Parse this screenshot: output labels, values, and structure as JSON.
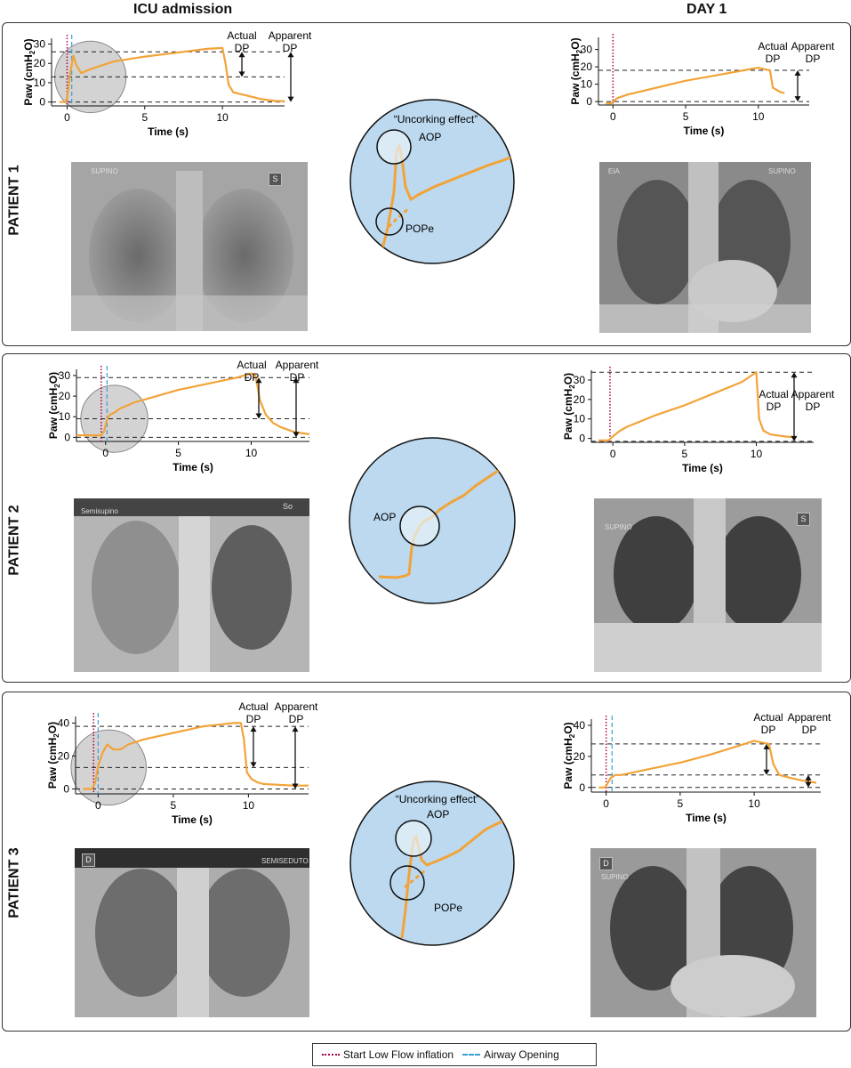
{
  "headers": {
    "left": "ICU admission",
    "right": "DAY 1"
  },
  "legend": {
    "start": {
      "label": "Start Low Flow inflation",
      "color": "#a8004d"
    },
    "airway": {
      "label": "Airway  Opening",
      "color": "#3a9fd5"
    }
  },
  "colors": {
    "trace": "#f2a338",
    "inset_bg": "#bcd9ef",
    "uncork_fill": "#e8f2fa",
    "gray_circle": "#d3d3d3"
  },
  "axis": {
    "ylabel_main": "Paw (cmH",
    "ylabel_sub": "2",
    "ylabel_end": "O)",
    "xlabel": "Time (s)"
  },
  "labels": {
    "actual": [
      "Actual",
      "DP"
    ],
    "apparent": [
      "Apparent",
      "DP"
    ],
    "uncorking": "“Uncorking effect”",
    "aop": "AOP",
    "pope": "POPe"
  },
  "patients": [
    {
      "label": "PATIENT 1",
      "xray_left": {
        "tag": "SUPINO",
        "box": "S"
      },
      "xray_right": {
        "tag": "EIA",
        "tag2": "SUPINO",
        "box": ""
      }
    },
    {
      "label": "PATIENT 2",
      "xray_left": {
        "tag": "Semisupino",
        "box": "So"
      },
      "xray_right": {
        "tag": "SUPINO",
        "box": "S"
      }
    },
    {
      "label": "PATIENT 3",
      "xray_left": {
        "tag": "SEMISEDUTO",
        "box": "D"
      },
      "xray_right": {
        "tag": "SUPINO",
        "box": "D"
      }
    }
  ],
  "chart_data": [
    {
      "id": "p1-icu",
      "type": "line",
      "xlim": [
        -1,
        14
      ],
      "ylim": [
        -2,
        33
      ],
      "xticks": [
        0,
        5,
        10
      ],
      "yticks": [
        0,
        10,
        20,
        30
      ],
      "start_line": 0,
      "airway_line": 0.3,
      "dashed_levels": [
        26,
        13,
        0
      ],
      "actual_dp": [
        26,
        13
      ],
      "apparent_dp": [
        26,
        0
      ],
      "gray_circle": {
        "cx": 1.5,
        "cy": 13,
        "r": 2.3
      },
      "series": [
        {
          "x": [
            -0.5,
            -0.1,
            0.0,
            0.2,
            0.4,
            0.6,
            0.9,
            1.5,
            3,
            5,
            7,
            9,
            10,
            10.2,
            10.4,
            10.7,
            11.5,
            12.5,
            13.5,
            14
          ],
          "y": [
            0,
            0,
            2,
            15,
            24,
            19,
            15,
            17,
            21,
            23.5,
            25.5,
            27.5,
            28,
            20,
            9,
            5,
            3.5,
            1.5,
            0.5,
            0.5
          ]
        }
      ]
    },
    {
      "id": "p1-day1",
      "type": "line",
      "xlim": [
        -1,
        13.5
      ],
      "ylim": [
        -2,
        37
      ],
      "xticks": [
        0,
        5,
        10
      ],
      "yticks": [
        0,
        10,
        20,
        30
      ],
      "start_line": 0,
      "dashed_levels": [
        18,
        0
      ],
      "actual_dp": null,
      "apparent_dp": [
        18,
        0
      ],
      "series": [
        {
          "x": [
            -0.5,
            -0.1,
            0.0,
            0.3,
            1,
            2,
            3,
            5,
            7,
            9,
            10,
            10.5,
            10.8,
            11,
            11.5,
            11.8
          ],
          "y": [
            -1,
            -1,
            0,
            2,
            4,
            6,
            8,
            12,
            15,
            18,
            19.5,
            18.5,
            18,
            8,
            5.5,
            5
          ]
        }
      ]
    },
    {
      "id": "p2-icu",
      "type": "line",
      "xlim": [
        -2,
        14
      ],
      "ylim": [
        -2,
        33
      ],
      "xticks": [
        0,
        5,
        10
      ],
      "yticks": [
        0,
        10,
        20,
        30
      ],
      "start_line": -0.3,
      "airway_line": 0.1,
      "dashed_levels": [
        29,
        9,
        0
      ],
      "actual_dp": [
        29,
        9
      ],
      "apparent_dp": [
        29,
        0
      ],
      "gray_circle": {
        "cx": 0.6,
        "cy": 9,
        "r": 2.3
      },
      "series": [
        {
          "x": [
            -2,
            -0.6,
            -0.3,
            -0.1,
            0.0,
            0.1,
            0.3,
            0.6,
            1,
            2,
            3,
            5,
            7,
            9,
            10,
            10.3,
            10.6,
            11,
            11.5,
            12,
            13,
            14
          ],
          "y": [
            1,
            1,
            1,
            3,
            6,
            9,
            11,
            12,
            14,
            17,
            19,
            23,
            26,
            29,
            31,
            30,
            18,
            11,
            7,
            5,
            2.5,
            1.5
          ]
        }
      ]
    },
    {
      "id": "p2-day1",
      "type": "line",
      "xlim": [
        -1.5,
        14
      ],
      "ylim": [
        -2,
        35
      ],
      "xticks": [
        0,
        5,
        10
      ],
      "yticks": [
        0,
        10,
        20,
        30
      ],
      "start_line": -0.2,
      "dashed_levels": [
        34,
        -1.5
      ],
      "actual_dp": null,
      "apparent_dp": [
        34,
        -1.5
      ],
      "series": [
        {
          "x": [
            -1,
            -0.3,
            0.0,
            0.5,
            1,
            2,
            3,
            5,
            7,
            9,
            9.8,
            10.0,
            10.2,
            10.5,
            11,
            12,
            12.8
          ],
          "y": [
            -1,
            -1,
            1,
            4,
            6,
            9,
            12,
            17,
            23,
            29,
            33,
            34,
            10,
            4,
            2,
            1,
            0.5
          ]
        }
      ]
    },
    {
      "id": "p3-icu",
      "type": "line",
      "xlim": [
        -1.5,
        14
      ],
      "ylim": [
        -3,
        44
      ],
      "xticks": [
        0,
        5,
        10
      ],
      "yticks": [
        0,
        20,
        40
      ],
      "start_line": -0.3,
      "airway_line": 0.0,
      "dashed_levels": [
        38,
        13,
        0
      ],
      "actual_dp": [
        38,
        13
      ],
      "apparent_dp": [
        38,
        0
      ],
      "gray_circle": {
        "cx": 0.7,
        "cy": 13,
        "r": 2.5
      },
      "series": [
        {
          "x": [
            -1,
            -0.4,
            -0.2,
            0.0,
            0.3,
            0.6,
            1,
            1.5,
            2,
            3,
            4,
            5,
            6,
            7,
            8,
            9,
            9.5,
            9.7,
            9.9,
            10.2,
            10.6,
            11,
            12,
            13,
            14
          ],
          "y": [
            0,
            0,
            4,
            14,
            22,
            27,
            24,
            24,
            27,
            30,
            32,
            34,
            36,
            38,
            39,
            40,
            40,
            30,
            10,
            6,
            4,
            3,
            2.5,
            2,
            2
          ]
        }
      ]
    },
    {
      "id": "p3-day1",
      "type": "line",
      "xlim": [
        -1,
        14.5
      ],
      "ylim": [
        -3,
        44
      ],
      "xticks": [
        0,
        5,
        10
      ],
      "yticks": [
        0,
        20,
        40
      ],
      "start_line": 0,
      "airway_line": 0.4,
      "dashed_levels": [
        28,
        8,
        0
      ],
      "actual_dp": [
        28,
        8
      ],
      "apparent_dp": [
        8,
        0
      ],
      "series": [
        {
          "x": [
            -0.5,
            -0.1,
            0.0,
            0.3,
            0.6,
            1,
            2,
            3,
            5,
            7,
            9,
            10,
            10.5,
            11,
            11.3,
            11.7,
            12.5,
            13.5,
            14.2
          ],
          "y": [
            0,
            0,
            1,
            6,
            8,
            8,
            10,
            12,
            16,
            21,
            27,
            30,
            29,
            28,
            15,
            8,
            6,
            4,
            3
          ]
        }
      ]
    }
  ]
}
